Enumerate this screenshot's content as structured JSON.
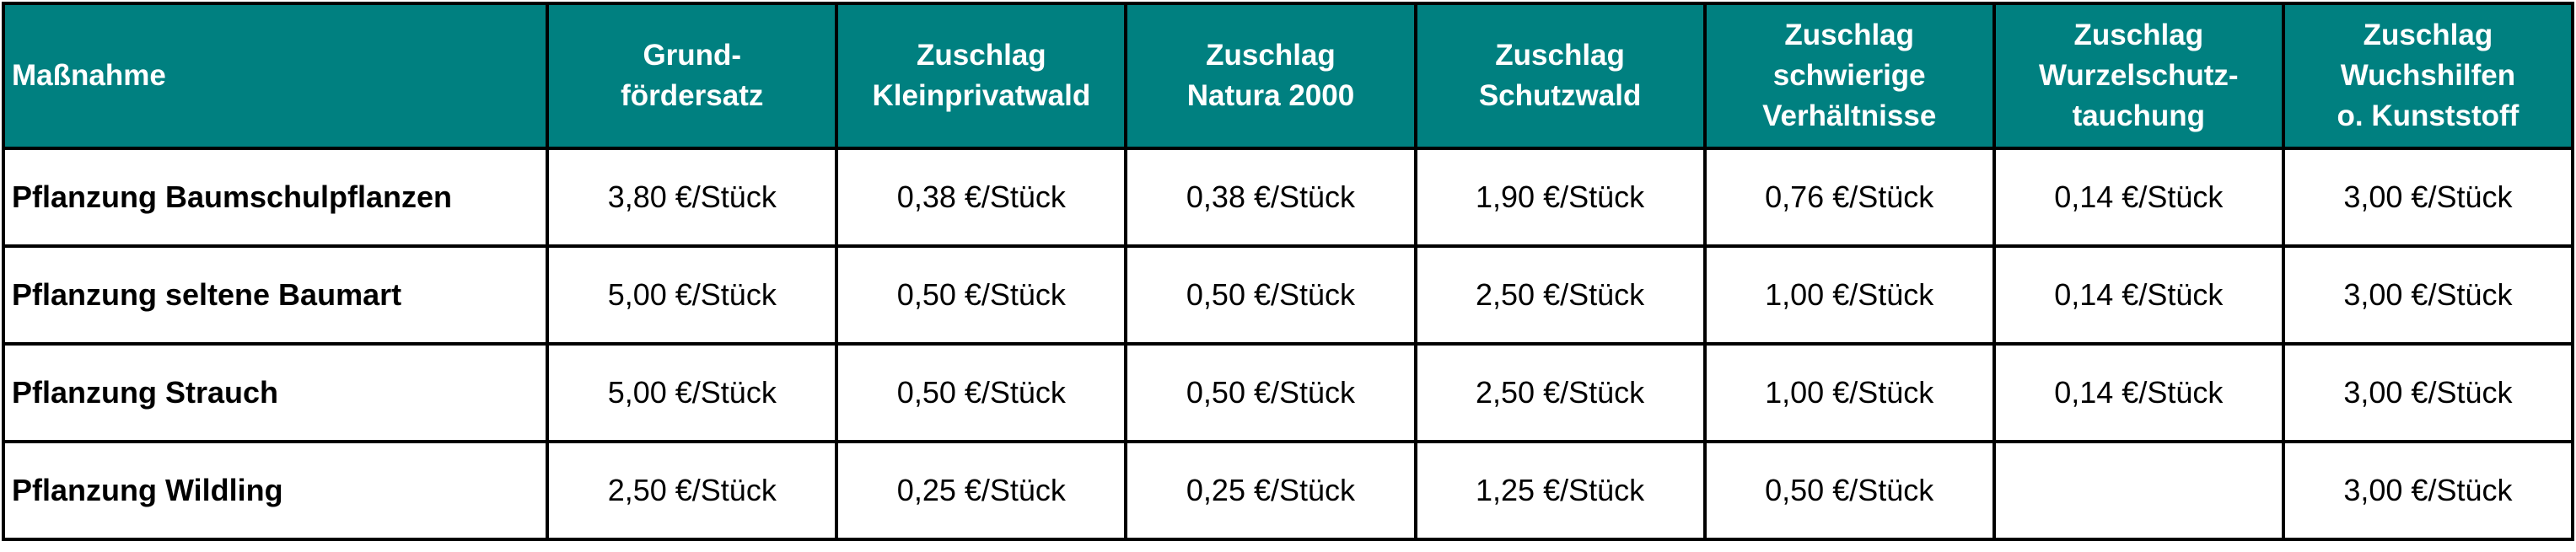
{
  "colors": {
    "header_bg": "#008080",
    "header_text": "#ffffff",
    "border": "#000000"
  },
  "table": {
    "headers": [
      [
        "Maßnahme"
      ],
      [
        "Grund-",
        "fördersatz"
      ],
      [
        "Zuschlag",
        "Kleinprivatwald"
      ],
      [
        "Zuschlag",
        "Natura 2000"
      ],
      [
        "Zuschlag",
        "Schutzwald"
      ],
      [
        "Zuschlag",
        "schwierige",
        "Verhältnisse"
      ],
      [
        "Zuschlag",
        "Wurzelschutz-",
        "tauchung"
      ],
      [
        "Zuschlag",
        "Wuchshilfen",
        "o. Kunststoff"
      ]
    ],
    "rows": [
      [
        "Pflanzung Baumschulpflanzen",
        "3,80 €/Stück",
        "0,38 €/Stück",
        "0,38 €/Stück",
        "1,90 €/Stück",
        "0,76 €/Stück",
        "0,14 €/Stück",
        "3,00 €/Stück"
      ],
      [
        "Pflanzung seltene Baumart",
        "5,00 €/Stück",
        "0,50 €/Stück",
        "0,50 €/Stück",
        "2,50 €/Stück",
        "1,00 €/Stück",
        "0,14 €/Stück",
        "3,00 €/Stück"
      ],
      [
        "Pflanzung Strauch",
        "5,00 €/Stück",
        "0,50 €/Stück",
        "0,50 €/Stück",
        "2,50 €/Stück",
        "1,00 €/Stück",
        "0,14 €/Stück",
        "3,00 €/Stück"
      ],
      [
        "Pflanzung Wildling",
        "2,50 €/Stück",
        "0,25 €/Stück",
        "0,25 €/Stück",
        "1,25 €/Stück",
        "0,50 €/Stück",
        "",
        "3,00 €/Stück"
      ]
    ]
  }
}
